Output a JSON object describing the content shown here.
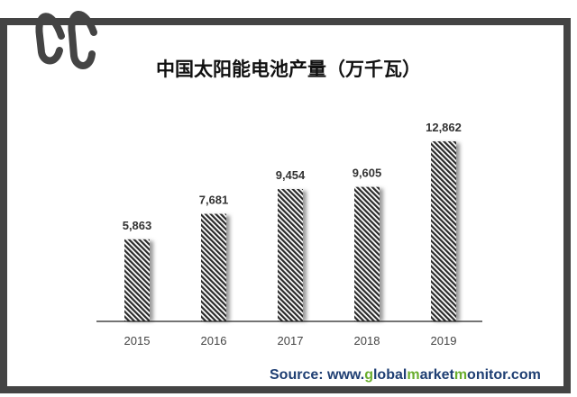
{
  "chart_data": {
    "type": "bar",
    "title": "中国太阳能电池产量（万千瓦）",
    "categories": [
      "2015",
      "2016",
      "2017",
      "2018",
      "2019"
    ],
    "values": [
      5863,
      7681,
      9454,
      9605,
      12862
    ],
    "data_labels": [
      "5,863",
      "7,681",
      "9,454",
      "9,605",
      "12,862"
    ],
    "xlabel": "",
    "ylabel": "",
    "grid": false,
    "bar_fill": "diagonal-stripes",
    "colors": {
      "bar": "#333333",
      "frame": "#444444",
      "source_blue": "#1f3f73",
      "source_green": "#6aae2e"
    }
  },
  "source": {
    "parts": [
      {
        "text": "Source: www.",
        "green": false
      },
      {
        "text": "g",
        "green": true
      },
      {
        "text": "lobal",
        "green": false
      },
      {
        "text": "m",
        "green": true
      },
      {
        "text": "arket",
        "green": false
      },
      {
        "text": "m",
        "green": true
      },
      {
        "text": "onitor.com",
        "green": false
      }
    ]
  },
  "logo": {
    "text": "CC"
  }
}
